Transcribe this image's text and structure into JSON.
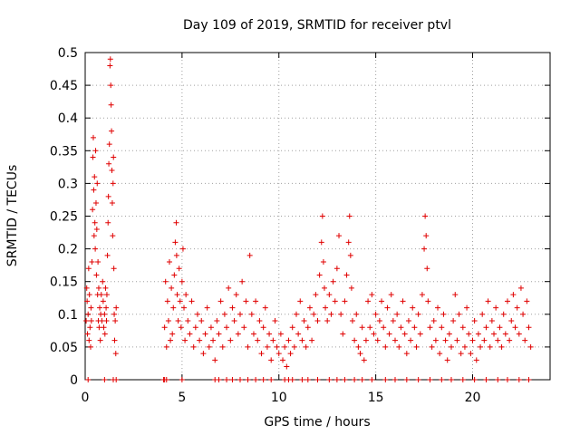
{
  "chart_data": {
    "type": "scatter",
    "title": "Day 109 of 2019, SRMTID for receiver ptvl",
    "xlabel": "GPS time / hours",
    "ylabel": "SRMTID / TECUs",
    "xlim": [
      0,
      24
    ],
    "ylim": [
      0,
      0.5
    ],
    "x_ticks": [
      0,
      5,
      10,
      15,
      20
    ],
    "x_tick_labels": [
      "0",
      "5",
      "10",
      "15",
      "20"
    ],
    "y_ticks": [
      0,
      0.05,
      0.1,
      0.15,
      0.2,
      0.25,
      0.3,
      0.35,
      0.4,
      0.45,
      0.5
    ],
    "y_tick_labels": [
      "0",
      "0.05",
      "0.1",
      "0.15",
      "0.2",
      "0.25",
      "0.3",
      "0.35",
      "0.4",
      "0.45",
      "0.5"
    ],
    "grid": true,
    "marker": "plus",
    "color": "#e00000",
    "series": [
      {
        "name": "SRMTID",
        "points": [
          [
            0.05,
            0.09
          ],
          [
            0.08,
            0.14
          ],
          [
            0.1,
            0.12
          ],
          [
            0.12,
            0.07
          ],
          [
            0.15,
            0.1
          ],
          [
            0.18,
            0.17
          ],
          [
            0.2,
            0.06
          ],
          [
            0.22,
            0.13
          ],
          [
            0.25,
            0.08
          ],
          [
            0.28,
            0.05
          ],
          [
            0.3,
            0.11
          ],
          [
            0.32,
            0.09
          ],
          [
            0.35,
            0.18
          ],
          [
            0.38,
            0.26
          ],
          [
            0.4,
            0.34
          ],
          [
            0.42,
            0.37
          ],
          [
            0.44,
            0.29
          ],
          [
            0.46,
            0.22
          ],
          [
            0.48,
            0.31
          ],
          [
            0.5,
            0.24
          ],
          [
            0.52,
            0.2
          ],
          [
            0.54,
            0.35
          ],
          [
            0.56,
            0.27
          ],
          [
            0.58,
            0.16
          ],
          [
            0.6,
            0.23
          ],
          [
            0.62,
            0.3
          ],
          [
            0.64,
            0.13
          ],
          [
            0.66,
            0.18
          ],
          [
            0.68,
            0.09
          ],
          [
            0.7,
            0.14
          ],
          [
            0.72,
            0.08
          ],
          [
            0.75,
            0.11
          ],
          [
            0.78,
            0.06
          ],
          [
            0.8,
            0.1
          ],
          [
            0.83,
            0.13
          ],
          [
            0.86,
            0.09
          ],
          [
            0.9,
            0.15
          ],
          [
            0.93,
            0.12
          ],
          [
            0.96,
            0.08
          ],
          [
            1.0,
            0.1
          ],
          [
            1.02,
            0.07
          ],
          [
            1.05,
            0.14
          ],
          [
            1.08,
            0.11
          ],
          [
            1.1,
            0.09
          ],
          [
            1.12,
            0.13
          ],
          [
            1.15,
            0.19
          ],
          [
            1.18,
            0.24
          ],
          [
            1.2,
            0.28
          ],
          [
            1.22,
            0.33
          ],
          [
            1.25,
            0.36
          ],
          [
            1.28,
            0.48
          ],
          [
            1.3,
            0.49
          ],
          [
            1.32,
            0.45
          ],
          [
            1.34,
            0.42
          ],
          [
            1.36,
            0.38
          ],
          [
            1.38,
            0.32
          ],
          [
            1.4,
            0.27
          ],
          [
            1.42,
            0.22
          ],
          [
            1.44,
            0.3
          ],
          [
            1.46,
            0.34
          ],
          [
            1.48,
            0.17
          ],
          [
            1.5,
            0.1
          ],
          [
            1.52,
            0.06
          ],
          [
            1.55,
            0.09
          ],
          [
            1.58,
            0.04
          ],
          [
            1.6,
            0.11
          ],
          [
            1.0,
            0.0
          ],
          [
            1.45,
            0.0
          ],
          [
            1.6,
            0.0
          ],
          [
            0.15,
            0.0
          ],
          [
            4.1,
            0.08
          ],
          [
            4.15,
            0.15
          ],
          [
            4.2,
            0.05
          ],
          [
            4.25,
            0.12
          ],
          [
            4.3,
            0.09
          ],
          [
            4.35,
            0.18
          ],
          [
            4.4,
            0.06
          ],
          [
            4.45,
            0.14
          ],
          [
            4.5,
            0.07
          ],
          [
            4.55,
            0.11
          ],
          [
            4.6,
            0.16
          ],
          [
            4.65,
            0.21
          ],
          [
            4.7,
            0.24
          ],
          [
            4.72,
            0.19
          ],
          [
            4.75,
            0.13
          ],
          [
            4.8,
            0.09
          ],
          [
            4.85,
            0.17
          ],
          [
            4.9,
            0.12
          ],
          [
            4.95,
            0.08
          ],
          [
            5.0,
            0.15
          ],
          [
            5.05,
            0.2
          ],
          [
            5.1,
            0.11
          ],
          [
            5.15,
            0.06
          ],
          [
            5.2,
            0.13
          ],
          [
            5.3,
            0.09
          ],
          [
            5.4,
            0.07
          ],
          [
            5.5,
            0.12
          ],
          [
            5.6,
            0.05
          ],
          [
            5.7,
            0.08
          ],
          [
            5.8,
            0.1
          ],
          [
            5.9,
            0.06
          ],
          [
            6.0,
            0.09
          ],
          [
            6.1,
            0.04
          ],
          [
            6.2,
            0.07
          ],
          [
            6.3,
            0.11
          ],
          [
            6.4,
            0.05
          ],
          [
            6.5,
            0.08
          ],
          [
            6.6,
            0.06
          ],
          [
            6.7,
            0.03
          ],
          [
            6.8,
            0.09
          ],
          [
            6.9,
            0.07
          ],
          [
            7.0,
            0.12
          ],
          [
            7.1,
            0.05
          ],
          [
            7.2,
            0.1
          ],
          [
            7.3,
            0.08
          ],
          [
            7.4,
            0.14
          ],
          [
            7.5,
            0.06
          ],
          [
            7.6,
            0.11
          ],
          [
            7.7,
            0.09
          ],
          [
            7.8,
            0.13
          ],
          [
            7.9,
            0.07
          ],
          [
            8.0,
            0.1
          ],
          [
            8.1,
            0.15
          ],
          [
            8.2,
            0.08
          ],
          [
            8.3,
            0.12
          ],
          [
            8.4,
            0.05
          ],
          [
            8.5,
            0.19
          ],
          [
            8.6,
            0.1
          ],
          [
            8.7,
            0.07
          ],
          [
            8.8,
            0.12
          ],
          [
            8.9,
            0.06
          ],
          [
            9.0,
            0.09
          ],
          [
            9.1,
            0.04
          ],
          [
            9.2,
            0.08
          ],
          [
            9.3,
            0.11
          ],
          [
            9.4,
            0.05
          ],
          [
            9.5,
            0.07
          ],
          [
            9.6,
            0.03
          ],
          [
            9.7,
            0.06
          ],
          [
            9.8,
            0.09
          ],
          [
            9.9,
            0.05
          ],
          [
            10.0,
            0.04
          ],
          [
            10.1,
            0.07
          ],
          [
            10.2,
            0.03
          ],
          [
            10.3,
            0.05
          ],
          [
            10.4,
            0.02
          ],
          [
            10.5,
            0.06
          ],
          [
            10.6,
            0.04
          ],
          [
            10.7,
            0.08
          ],
          [
            10.8,
            0.05
          ],
          [
            10.9,
            0.1
          ],
          [
            11.0,
            0.07
          ],
          [
            11.1,
            0.12
          ],
          [
            11.2,
            0.06
          ],
          [
            11.3,
            0.09
          ],
          [
            11.4,
            0.05
          ],
          [
            11.5,
            0.08
          ],
          [
            11.6,
            0.11
          ],
          [
            11.7,
            0.06
          ],
          [
            11.8,
            0.1
          ],
          [
            11.9,
            0.13
          ],
          [
            12.0,
            0.09
          ],
          [
            12.1,
            0.16
          ],
          [
            12.2,
            0.21
          ],
          [
            12.25,
            0.25
          ],
          [
            12.3,
            0.18
          ],
          [
            12.35,
            0.14
          ],
          [
            12.4,
            0.11
          ],
          [
            12.5,
            0.09
          ],
          [
            12.6,
            0.13
          ],
          [
            12.7,
            0.1
          ],
          [
            12.8,
            0.15
          ],
          [
            12.9,
            0.12
          ],
          [
            13.0,
            0.17
          ],
          [
            13.1,
            0.22
          ],
          [
            13.2,
            0.1
          ],
          [
            13.3,
            0.07
          ],
          [
            13.4,
            0.12
          ],
          [
            13.5,
            0.16
          ],
          [
            13.6,
            0.21
          ],
          [
            13.65,
            0.25
          ],
          [
            13.7,
            0.19
          ],
          [
            13.75,
            0.14
          ],
          [
            13.8,
            0.09
          ],
          [
            13.9,
            0.06
          ],
          [
            14.0,
            0.1
          ],
          [
            14.1,
            0.05
          ],
          [
            14.2,
            0.04
          ],
          [
            14.3,
            0.08
          ],
          [
            14.4,
            0.03
          ],
          [
            14.5,
            0.06
          ],
          [
            14.6,
            0.12
          ],
          [
            14.7,
            0.08
          ],
          [
            14.8,
            0.13
          ],
          [
            14.9,
            0.07
          ],
          [
            15.0,
            0.1
          ],
          [
            15.1,
            0.06
          ],
          [
            15.2,
            0.09
          ],
          [
            15.3,
            0.12
          ],
          [
            15.4,
            0.08
          ],
          [
            15.5,
            0.05
          ],
          [
            15.6,
            0.11
          ],
          [
            15.7,
            0.07
          ],
          [
            15.8,
            0.13
          ],
          [
            15.9,
            0.09
          ],
          [
            16.0,
            0.06
          ],
          [
            16.1,
            0.1
          ],
          [
            16.2,
            0.05
          ],
          [
            16.3,
            0.08
          ],
          [
            16.4,
            0.12
          ],
          [
            16.5,
            0.07
          ],
          [
            16.6,
            0.04
          ],
          [
            16.7,
            0.09
          ],
          [
            16.8,
            0.06
          ],
          [
            16.9,
            0.11
          ],
          [
            17.0,
            0.08
          ],
          [
            17.1,
            0.05
          ],
          [
            17.2,
            0.1
          ],
          [
            17.3,
            0.07
          ],
          [
            17.4,
            0.13
          ],
          [
            17.5,
            0.2
          ],
          [
            17.55,
            0.25
          ],
          [
            17.6,
            0.22
          ],
          [
            17.65,
            0.17
          ],
          [
            17.7,
            0.12
          ],
          [
            17.8,
            0.08
          ],
          [
            17.9,
            0.05
          ],
          [
            18.0,
            0.09
          ],
          [
            18.1,
            0.06
          ],
          [
            18.2,
            0.11
          ],
          [
            18.3,
            0.04
          ],
          [
            18.4,
            0.08
          ],
          [
            18.5,
            0.1
          ],
          [
            18.6,
            0.06
          ],
          [
            18.7,
            0.03
          ],
          [
            18.8,
            0.07
          ],
          [
            18.9,
            0.05
          ],
          [
            19.0,
            0.09
          ],
          [
            19.1,
            0.13
          ],
          [
            19.2,
            0.06
          ],
          [
            19.3,
            0.1
          ],
          [
            19.4,
            0.04
          ],
          [
            19.5,
            0.08
          ],
          [
            19.6,
            0.05
          ],
          [
            19.7,
            0.11
          ],
          [
            19.8,
            0.07
          ],
          [
            19.9,
            0.04
          ],
          [
            20.0,
            0.06
          ],
          [
            20.1,
            0.09
          ],
          [
            20.2,
            0.03
          ],
          [
            20.3,
            0.07
          ],
          [
            20.4,
            0.05
          ],
          [
            20.5,
            0.1
          ],
          [
            20.6,
            0.06
          ],
          [
            20.7,
            0.08
          ],
          [
            20.8,
            0.12
          ],
          [
            20.9,
            0.05
          ],
          [
            21.0,
            0.09
          ],
          [
            21.1,
            0.07
          ],
          [
            21.2,
            0.11
          ],
          [
            21.3,
            0.06
          ],
          [
            21.4,
            0.08
          ],
          [
            21.5,
            0.05
          ],
          [
            21.6,
            0.1
          ],
          [
            21.7,
            0.07
          ],
          [
            21.8,
            0.12
          ],
          [
            21.9,
            0.06
          ],
          [
            22.0,
            0.09
          ],
          [
            22.1,
            0.13
          ],
          [
            22.2,
            0.08
          ],
          [
            22.3,
            0.11
          ],
          [
            22.4,
            0.07
          ],
          [
            22.5,
            0.14
          ],
          [
            22.6,
            0.1
          ],
          [
            22.7,
            0.06
          ],
          [
            22.8,
            0.12
          ],
          [
            22.9,
            0.08
          ],
          [
            23.0,
            0.05
          ],
          [
            4.05,
            0.0
          ],
          [
            4.1,
            0.0
          ],
          [
            4.2,
            0.0
          ],
          [
            5.0,
            0.0
          ],
          [
            6.7,
            0.0
          ],
          [
            6.9,
            0.0
          ],
          [
            7.3,
            0.0
          ],
          [
            7.6,
            0.0
          ],
          [
            8.0,
            0.0
          ],
          [
            8.4,
            0.0
          ],
          [
            8.8,
            0.0
          ],
          [
            9.2,
            0.0
          ],
          [
            9.6,
            0.0
          ],
          [
            10.3,
            0.0
          ],
          [
            10.5,
            0.0
          ],
          [
            10.7,
            0.0
          ],
          [
            11.2,
            0.0
          ],
          [
            11.5,
            0.0
          ],
          [
            12.0,
            0.0
          ],
          [
            12.6,
            0.0
          ],
          [
            13.0,
            0.0
          ],
          [
            13.4,
            0.0
          ],
          [
            13.9,
            0.0
          ],
          [
            14.3,
            0.0
          ],
          [
            14.8,
            0.0
          ],
          [
            15.5,
            0.0
          ],
          [
            16.0,
            0.0
          ],
          [
            16.6,
            0.0
          ],
          [
            17.2,
            0.0
          ],
          [
            17.8,
            0.0
          ],
          [
            18.4,
            0.0
          ],
          [
            18.9,
            0.0
          ],
          [
            19.5,
            0.0
          ],
          [
            20.1,
            0.0
          ],
          [
            20.7,
            0.0
          ],
          [
            21.3,
            0.0
          ],
          [
            21.8,
            0.0
          ],
          [
            22.4,
            0.0
          ],
          [
            22.9,
            0.0
          ]
        ]
      }
    ]
  }
}
